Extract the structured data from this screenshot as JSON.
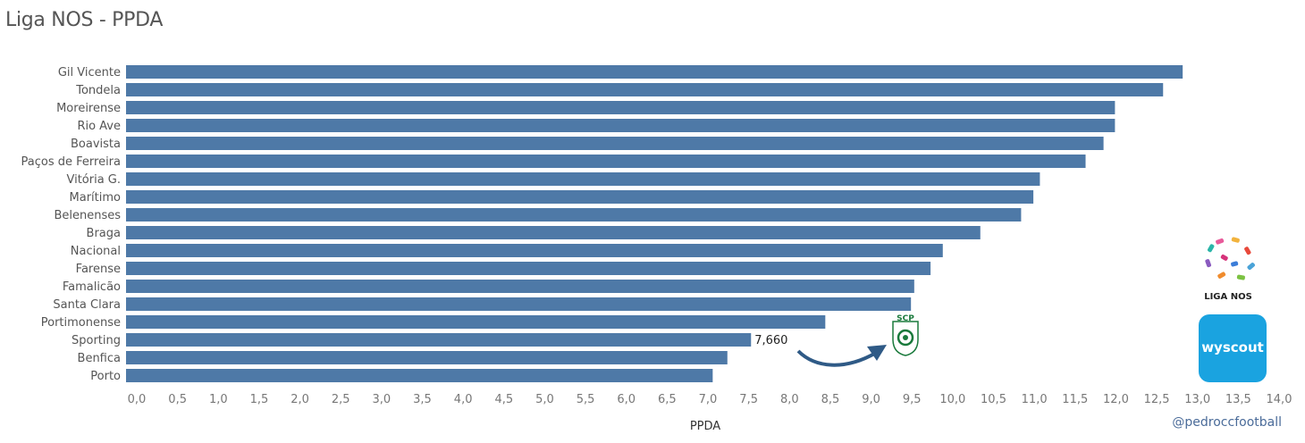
{
  "title": "Liga NOS - PPDA",
  "credit": "@pedroccfootball",
  "logos": {
    "liga_text": "LIGA NOS",
    "wyscout_text": "wyscout",
    "club_text": "SCP"
  },
  "colors": {
    "bar": "#4e79a7",
    "arrow": "#2f5a86",
    "wyscout_bg": "#1aa3e0"
  },
  "chart_data": {
    "type": "bar",
    "orientation": "horizontal",
    "title": "Liga NOS - PPDA",
    "xlabel": "PPDA",
    "ylabel": "",
    "xlim": [
      0,
      14
    ],
    "grid": false,
    "categories": [
      "Gil Vicente",
      "Tondela",
      "Moreirense",
      "Rio Ave",
      "Boavista",
      "Paços de Ferreira",
      "Vitória G.",
      "Marítimo",
      "Belenenses",
      "Braga",
      "Nacional",
      "Farense",
      "Famalicão",
      "Santa Clara",
      "Portimonense",
      "Sporting",
      "Benfica",
      "Porto"
    ],
    "values": [
      12.95,
      12.71,
      12.12,
      12.12,
      11.98,
      11.76,
      11.2,
      11.12,
      10.97,
      10.47,
      10.01,
      9.86,
      9.66,
      9.62,
      8.57,
      7.66,
      7.37,
      7.19
    ],
    "ticks": [
      "0,0",
      "0,5",
      "1,0",
      "1,5",
      "2,0",
      "2,5",
      "3,0",
      "3,5",
      "4,0",
      "4,5",
      "5,0",
      "5,5",
      "6,0",
      "6,5",
      "7,0",
      "7,5",
      "8,0",
      "8,5",
      "9,0",
      "9,5",
      "10,0",
      "10,5",
      "11,0",
      "11,5",
      "12,0",
      "12,5",
      "13,0",
      "13,5",
      "14,0"
    ],
    "annotations": [
      {
        "category": "Sporting",
        "text": "7,660"
      }
    ]
  }
}
